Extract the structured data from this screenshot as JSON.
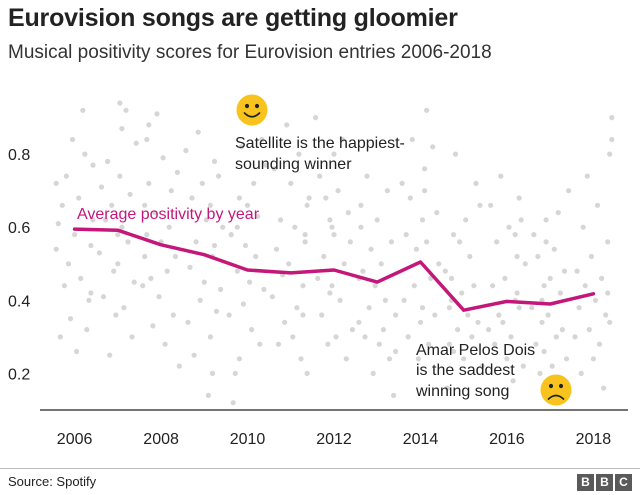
{
  "title": "Eurovision songs are getting gloomier",
  "subtitle": "Musical positivity scores for Eurovision entries 2006-2018",
  "source": "Source: Spotify",
  "logo": [
    "B",
    "B",
    "C"
  ],
  "colors": {
    "line": "#c3177a",
    "dots": "#d6d6d6",
    "face": "#f7c31c",
    "text": "#222222"
  },
  "annotations": {
    "happiest": {
      "lines": [
        "Satellite is the happiest-",
        "sounding winner"
      ],
      "icon": "smiley-face-icon"
    },
    "saddest": {
      "lines": [
        "Amar Pelos Dois",
        "is the saddest",
        "winning song"
      ],
      "icon": "sad-face-icon"
    },
    "series_label": "Average positivity by year"
  },
  "chart_data": {
    "type": "line",
    "title": "Eurovision songs are getting gloomier",
    "subtitle": "Musical positivity scores for Eurovision entries 2006-2018",
    "xlim": [
      2005.2,
      2018.8
    ],
    "ylim": [
      0.1,
      0.97
    ],
    "x_ticks": [
      2006,
      2008,
      2010,
      2012,
      2014,
      2016,
      2018
    ],
    "y_ticks": [
      0.2,
      0.4,
      0.6,
      0.8
    ],
    "y_tick_labels": [
      "0.2",
      "0.4",
      "0.6",
      "0.8"
    ],
    "grid": false,
    "series": [
      {
        "name": "Average positivity by year",
        "x": [
          2006,
          2007,
          2008,
          2009,
          2010,
          2011,
          2012,
          2013,
          2014,
          2015,
          2016,
          2017,
          2018
        ],
        "values": [
          0.595,
          0.592,
          0.552,
          0.525,
          0.483,
          0.475,
          0.483,
          0.45,
          0.505,
          0.373,
          0.397,
          0.39,
          0.418
        ]
      }
    ],
    "points": {
      "x_by_year": [
        2006,
        2007,
        2008,
        2009,
        2010,
        2011,
        2012,
        2013,
        2014,
        2015,
        2016,
        2017,
        2018
      ],
      "values_by_year": [
        [
          0.72,
          0.62,
          0.55,
          0.4,
          0.32,
          0.8,
          0.92,
          0.46,
          0.68,
          0.26,
          0.58,
          0.84,
          0.35,
          0.5,
          0.74,
          0.44,
          0.66,
          0.3,
          0.61,
          0.54,
          0.77,
          0.42
        ],
        [
          0.87,
          0.94,
          0.58,
          0.36,
          0.48,
          0.66,
          0.25,
          0.78,
          0.62,
          0.41,
          0.71,
          0.53,
          0.83,
          0.45,
          0.3,
          0.69,
          0.56,
          0.92,
          0.38,
          0.6,
          0.74,
          0.5
        ],
        [
          0.88,
          0.84,
          0.66,
          0.44,
          0.22,
          0.75,
          0.52,
          0.36,
          0.7,
          0.6,
          0.48,
          0.28,
          0.79,
          0.56,
          0.41,
          0.91,
          0.64,
          0.33,
          0.46,
          0.72,
          0.58,
          0.52
        ],
        [
          0.78,
          0.52,
          0.3,
          0.14,
          0.62,
          0.45,
          0.72,
          0.4,
          0.86,
          0.56,
          0.25,
          0.68,
          0.49,
          0.34,
          0.81,
          0.6,
          0.43,
          0.74,
          0.37,
          0.55,
          0.2,
          0.66
        ],
        [
          0.9,
          0.68,
          0.48,
          0.2,
          0.12,
          0.58,
          0.36,
          0.77,
          0.43,
          0.84,
          0.28,
          0.63,
          0.52,
          0.72,
          0.32,
          0.45,
          0.66,
          0.55,
          0.39,
          0.82,
          0.24,
          0.6
        ],
        [
          0.66,
          0.56,
          0.44,
          0.24,
          0.8,
          0.38,
          0.6,
          0.3,
          0.72,
          0.5,
          0.88,
          0.34,
          0.47,
          0.62,
          0.28,
          0.54,
          0.76,
          0.41,
          0.68,
          0.2,
          0.58,
          0.36
        ],
        [
          0.8,
          0.6,
          0.42,
          0.28,
          0.68,
          0.52,
          0.36,
          0.74,
          0.46,
          0.9,
          0.32,
          0.56,
          0.64,
          0.24,
          0.5,
          0.84,
          0.4,
          0.7,
          0.3,
          0.58,
          0.44,
          0.62
        ],
        [
          0.66,
          0.46,
          0.36,
          0.14,
          0.56,
          0.24,
          0.7,
          0.4,
          0.32,
          0.5,
          0.28,
          0.62,
          0.44,
          0.2,
          0.54,
          0.38,
          0.74,
          0.3,
          0.48,
          0.6,
          0.34,
          0.26
        ],
        [
          0.92,
          0.76,
          0.62,
          0.34,
          0.24,
          0.54,
          0.44,
          0.84,
          0.68,
          0.3,
          0.58,
          0.4,
          0.72,
          0.5,
          0.64,
          0.36,
          0.82,
          0.46,
          0.28,
          0.56,
          0.7,
          0.38
        ],
        [
          0.58,
          0.4,
          0.28,
          0.16,
          0.48,
          0.22,
          0.66,
          0.34,
          0.72,
          0.44,
          0.3,
          0.52,
          0.36,
          0.62,
          0.24,
          0.42,
          0.56,
          0.32,
          0.8,
          0.26,
          0.46,
          0.38
        ],
        [
          0.68,
          0.52,
          0.4,
          0.18,
          0.3,
          0.6,
          0.24,
          0.46,
          0.34,
          0.74,
          0.36,
          0.56,
          0.28,
          0.44,
          0.66,
          0.32,
          0.5,
          0.22,
          0.62,
          0.38,
          0.42,
          0.58
        ],
        [
          0.62,
          0.44,
          0.34,
          0.2,
          0.52,
          0.28,
          0.58,
          0.38,
          0.7,
          0.24,
          0.48,
          0.32,
          0.42,
          0.64,
          0.3,
          0.54,
          0.22,
          0.46,
          0.36,
          0.56,
          0.26,
          0.4
        ],
        [
          0.9,
          0.8,
          0.56,
          0.36,
          0.16,
          0.46,
          0.28,
          0.66,
          0.4,
          0.24,
          0.52,
          0.32,
          0.74,
          0.44,
          0.6,
          0.2,
          0.38,
          0.48,
          0.3,
          0.84,
          0.34,
          0.42
        ]
      ]
    }
  }
}
